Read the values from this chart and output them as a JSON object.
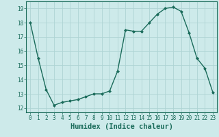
{
  "x": [
    0,
    1,
    2,
    3,
    4,
    5,
    6,
    7,
    8,
    9,
    10,
    11,
    12,
    13,
    14,
    15,
    16,
    17,
    18,
    19,
    20,
    21,
    22,
    23
  ],
  "y": [
    18.0,
    15.5,
    13.3,
    12.2,
    12.4,
    12.5,
    12.6,
    12.8,
    13.0,
    13.0,
    13.2,
    14.6,
    17.5,
    17.4,
    17.4,
    18.0,
    18.6,
    19.0,
    19.1,
    18.8,
    17.3,
    15.5,
    14.8,
    13.1
  ],
  "line_color": "#1a6b5a",
  "marker": "D",
  "marker_size": 2.0,
  "bg_color": "#cdeaea",
  "grid_color": "#aed4d4",
  "xlabel": "Humidex (Indice chaleur)",
  "xlim": [
    -0.5,
    23.5
  ],
  "ylim": [
    11.7,
    19.5
  ],
  "yticks": [
    12,
    13,
    14,
    15,
    16,
    17,
    18,
    19
  ],
  "xticks": [
    0,
    1,
    2,
    3,
    4,
    5,
    6,
    7,
    8,
    9,
    10,
    11,
    12,
    13,
    14,
    15,
    16,
    17,
    18,
    19,
    20,
    21,
    22,
    23
  ],
  "tick_color": "#1a6b5a",
  "label_color": "#1a6b5a",
  "tick_fontsize": 5.5,
  "xlabel_fontsize": 7.5,
  "linewidth": 1.0
}
